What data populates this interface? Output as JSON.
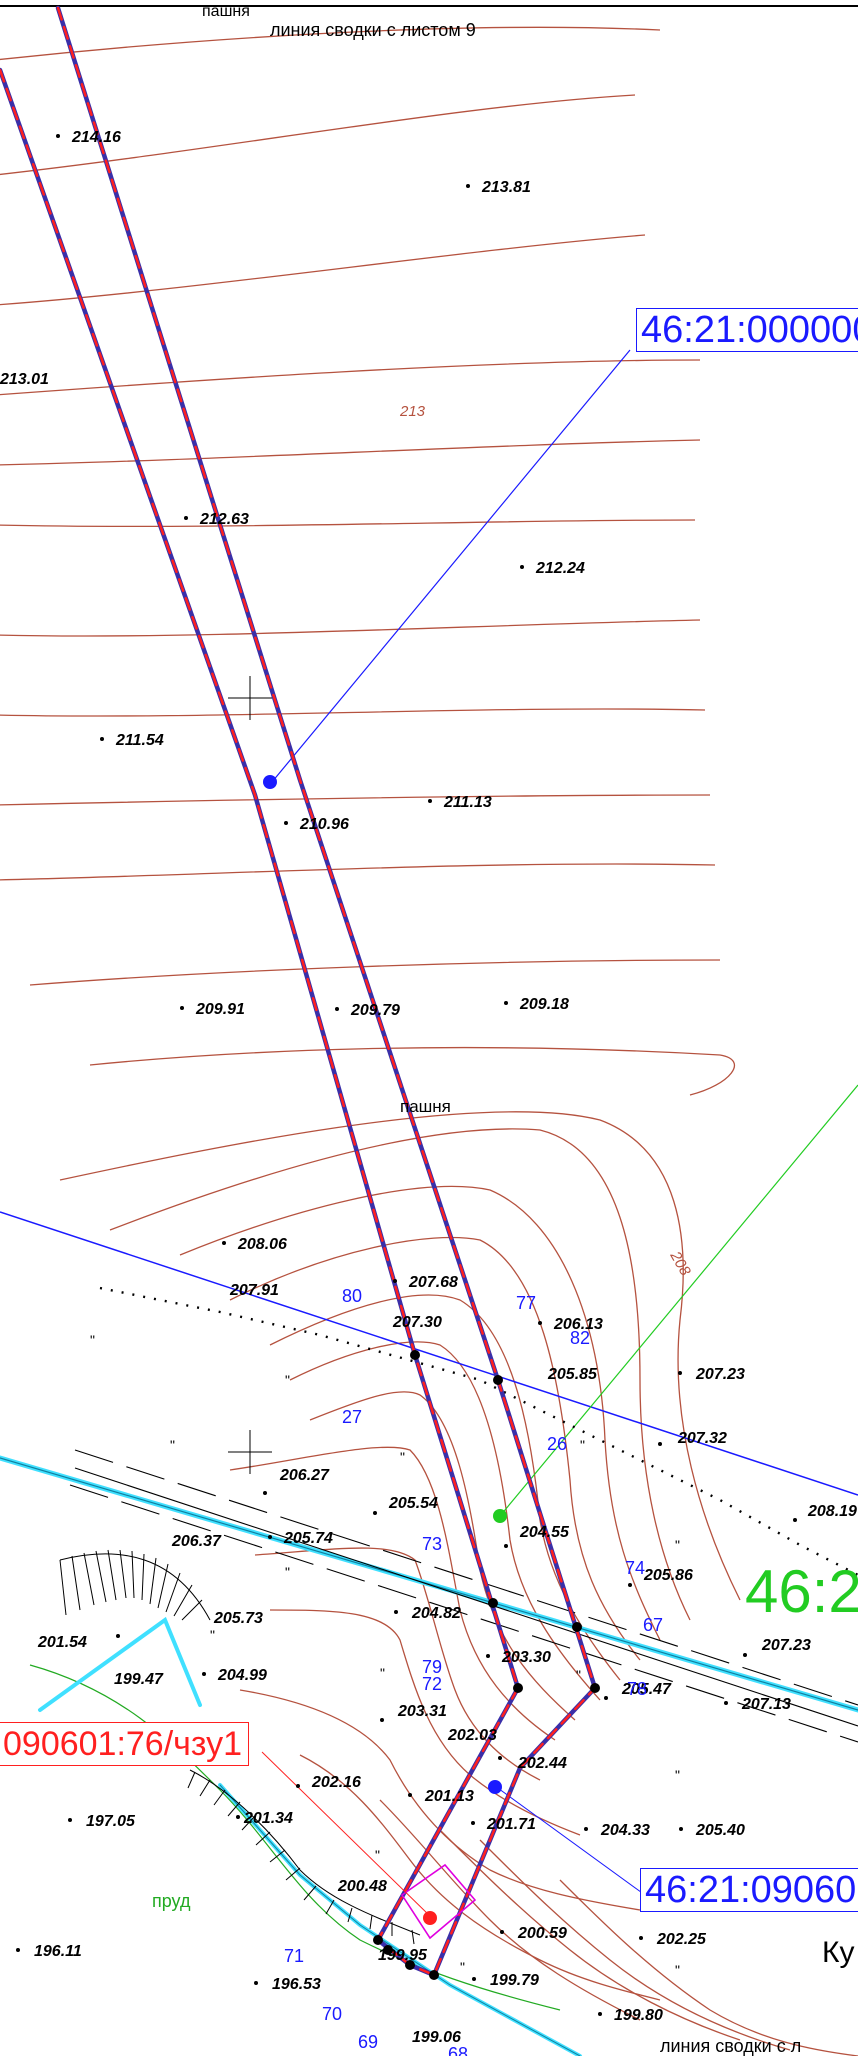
{
  "header": {
    "top_label": "линия сводки с листом 9",
    "bottom_label": "линия сводки с л"
  },
  "land_labels": {
    "field": "пашня",
    "pond": "пруд"
  },
  "parcels": {
    "top_right": "46:21:000000",
    "bottom_right": "46:21:09060",
    "left": "090601:76/чзу1",
    "large_green": "46:2",
    "place_partial": "Ку"
  },
  "contour_labels": [
    "213",
    "208"
  ],
  "elevations": [
    "214.16",
    "213.81",
    "213.01",
    "212.63",
    "212.24",
    "211.54",
    "210.96",
    "211.13",
    "209.91",
    "209.79",
    "209.18",
    "208.06",
    "207.91",
    "207.68",
    "207.30",
    "206.13",
    "205.85",
    "207.23",
    "207.32",
    "208.19",
    "206.27",
    "205.54",
    "206.37",
    "205.74",
    "204.55",
    "205.86",
    "205.73",
    "204.82",
    "201.54",
    "199.47",
    "204.99",
    "203.30",
    "207.23",
    "205.47",
    "207.13",
    "203.31",
    "202.03",
    "202.44",
    "202.16",
    "201.13",
    "201.71",
    "204.33",
    "205.40",
    "197.05",
    "201.34",
    "200.48",
    "196.11",
    "200.59",
    "202.25",
    "199.95",
    "196.53",
    "199.79",
    "199.80",
    "199.06"
  ],
  "point_numbers": [
    "80",
    "77",
    "82",
    "27",
    "26",
    "73",
    "74",
    "67",
    "79",
    "72",
    "78",
    "71",
    "70",
    "69",
    "68"
  ],
  "colors": {
    "contour": "#b5523f",
    "boundary": "#ff1f1f",
    "axis": "#3a2fa8",
    "cyan": "#40e0ff",
    "blue": "#1a1aff",
    "green": "#22cc22",
    "magenta": "#e000e0"
  }
}
